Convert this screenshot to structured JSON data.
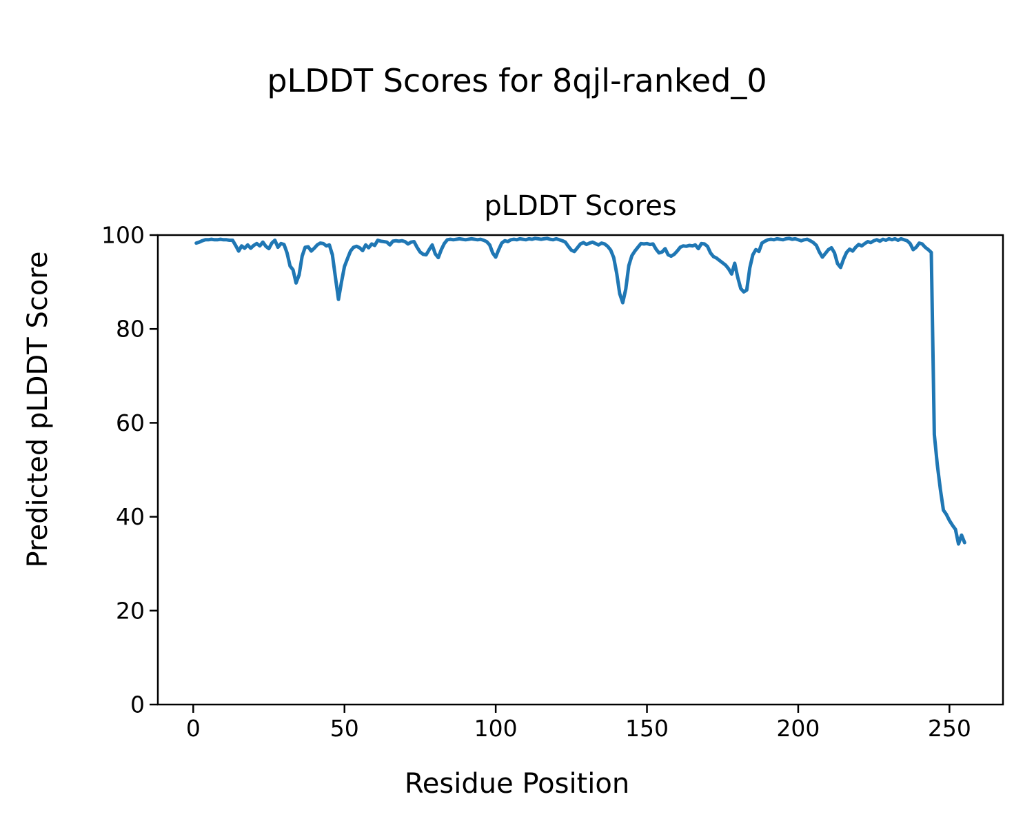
{
  "figure_title": "pLDDT Scores for 8qjl-ranked_0",
  "chart_data": {
    "type": "line",
    "title": "pLDDT Scores",
    "xlabel": "Residue Position",
    "ylabel": "Predicted pLDDT Score",
    "xlim": [
      -11.7,
      267.7
    ],
    "ylim": [
      0,
      100
    ],
    "xticks": [
      0,
      50,
      100,
      150,
      200,
      250
    ],
    "yticks": [
      0,
      20,
      40,
      60,
      80,
      100
    ],
    "grid": false,
    "legend": "none",
    "line_color": "#1f77b4",
    "line_width": 5,
    "series": [
      {
        "name": "pLDDT",
        "x_start": 1,
        "y": [
          98.3,
          98.5,
          98.8,
          99.0,
          99.0,
          99.1,
          99.0,
          99.0,
          99.1,
          99.0,
          99.0,
          98.9,
          98.9,
          97.8,
          96.6,
          97.7,
          97.2,
          97.9,
          97.2,
          97.8,
          98.2,
          97.7,
          98.5,
          97.6,
          97.1,
          98.3,
          98.9,
          97.4,
          98.2,
          98.0,
          96.2,
          93.4,
          92.6,
          89.8,
          91.5,
          95.5,
          97.4,
          97.5,
          96.6,
          97.2,
          97.9,
          98.3,
          98.2,
          97.7,
          97.9,
          95.8,
          91.0,
          86.3,
          90.0,
          93.3,
          95.0,
          96.6,
          97.4,
          97.6,
          97.3,
          96.7,
          97.9,
          97.3,
          98.1,
          97.8,
          98.9,
          98.7,
          98.6,
          98.5,
          97.9,
          98.7,
          98.8,
          98.7,
          98.8,
          98.6,
          98.1,
          98.5,
          98.6,
          97.4,
          96.4,
          95.9,
          95.8,
          96.9,
          97.9,
          96.0,
          95.2,
          96.9,
          98.2,
          99.0,
          99.1,
          99.0,
          99.1,
          99.2,
          99.1,
          99.0,
          99.1,
          99.2,
          99.1,
          99.0,
          99.1,
          98.9,
          98.6,
          97.9,
          96.2,
          95.3,
          96.9,
          98.3,
          98.8,
          98.6,
          99.0,
          99.1,
          99.0,
          99.2,
          99.1,
          99.0,
          99.2,
          99.1,
          99.3,
          99.2,
          99.1,
          99.2,
          99.3,
          99.1,
          99.0,
          99.2,
          99.0,
          98.8,
          98.5,
          97.6,
          96.8,
          96.5,
          97.3,
          98.1,
          98.4,
          98.0,
          98.3,
          98.5,
          98.2,
          97.9,
          98.3,
          98.1,
          97.6,
          96.8,
          95.2,
          91.8,
          87.5,
          85.6,
          88.5,
          93.5,
          95.6,
          96.6,
          97.4,
          98.2,
          98.1,
          98.2,
          98.0,
          98.1,
          97.0,
          96.2,
          96.4,
          97.1,
          95.8,
          95.5,
          95.9,
          96.6,
          97.4,
          97.7,
          97.6,
          97.8,
          97.7,
          97.9,
          97.1,
          98.2,
          98.1,
          97.6,
          96.2,
          95.4,
          95.1,
          94.6,
          94.1,
          93.6,
          92.8,
          91.7,
          94.0,
          91.0,
          88.6,
          87.9,
          88.3,
          93.0,
          95.8,
          96.9,
          96.5,
          98.3,
          98.7,
          99.0,
          99.1,
          99.0,
          99.2,
          99.1,
          99.0,
          99.2,
          99.3,
          99.1,
          99.2,
          99.0,
          98.8,
          99.0,
          99.1,
          98.8,
          98.4,
          97.8,
          96.4,
          95.3,
          96.1,
          96.9,
          97.3,
          96.2,
          93.9,
          93.1,
          94.9,
          96.3,
          97.0,
          96.6,
          97.4,
          98.0,
          97.7,
          98.2,
          98.6,
          98.4,
          98.8,
          99.0,
          98.7,
          99.1,
          98.9,
          99.2,
          99.0,
          99.2,
          98.9,
          99.2,
          99.0,
          98.8,
          98.2,
          96.9,
          97.4,
          98.3,
          98.1,
          97.4,
          96.9,
          96.3,
          57.5,
          51.0,
          45.8,
          41.4,
          40.5,
          39.2,
          38.2,
          37.3,
          34.2,
          36.1,
          34.5
        ]
      }
    ]
  }
}
